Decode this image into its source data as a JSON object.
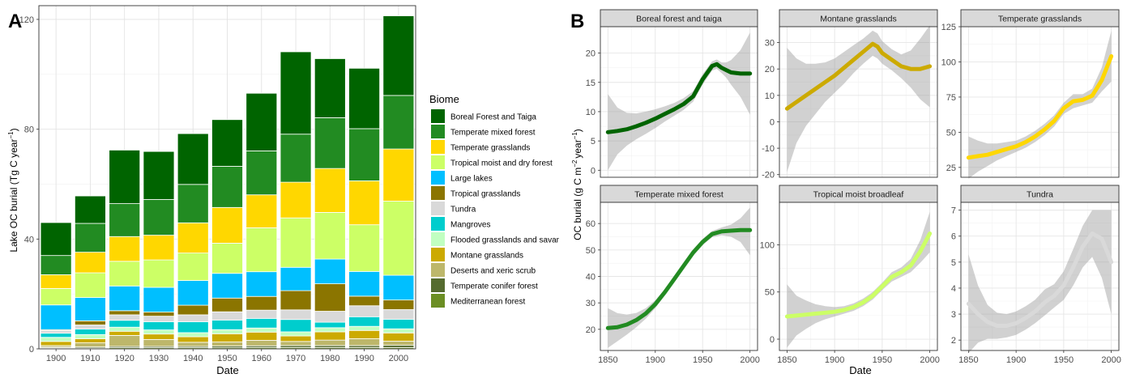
{
  "panelA": {
    "letter": "A",
    "chart_data": {
      "type": "bar",
      "stacked": true,
      "xlabel": "Date",
      "ylabel_main": "Lake OC burial (Tg C year",
      "ylabel_sup": "−1",
      "ylabel_end": ")",
      "ylim": [
        0,
        125
      ],
      "yticks": [
        0,
        40,
        80,
        120
      ],
      "categories": [
        "1900",
        "1910",
        "1920",
        "1930",
        "1940",
        "1950",
        "1960",
        "1970",
        "1980",
        "1990",
        "2000"
      ],
      "legend_title": "Biome",
      "grid": true,
      "series": [
        {
          "name": "Mediterranean forest",
          "color": "#6b8e23",
          "values": [
            0.3,
            0.3,
            0.4,
            0.4,
            0.4,
            0.4,
            0.5,
            0.5,
            0.5,
            0.5,
            0.5
          ]
        },
        {
          "name": "Temperate conifer forest",
          "color": "#556b2f",
          "values": [
            0.3,
            0.4,
            0.5,
            0.5,
            0.5,
            0.6,
            0.6,
            0.7,
            0.7,
            0.7,
            0.8
          ]
        },
        {
          "name": "Deserts and xeric scrub",
          "color": "#bdb76b",
          "values": [
            0.6,
            1.5,
            4.0,
            2.5,
            1.5,
            1.5,
            2.0,
            1.5,
            2.0,
            2.5,
            1.5
          ]
        },
        {
          "name": "Montane grasslands",
          "color": "#ccaa00",
          "values": [
            1.5,
            1.5,
            1.5,
            2.0,
            2.0,
            3.0,
            3.0,
            2.0,
            3.0,
            3.0,
            3.0
          ]
        },
        {
          "name": "Flooded grasslands and savanna",
          "color": "#c1ffc1",
          "values": [
            1.5,
            1.5,
            1.5,
            1.5,
            1.5,
            1.5,
            1.5,
            1.5,
            1.5,
            1.5,
            1.5
          ]
        },
        {
          "name": "Mangroves",
          "color": "#00cdcd",
          "values": [
            1.5,
            2.0,
            2.5,
            3.0,
            4.0,
            3.5,
            3.5,
            4.5,
            2.0,
            3.5,
            3.5
          ]
        },
        {
          "name": "Tundra",
          "color": "#d9d9d9",
          "values": [
            1.0,
            1.5,
            2.0,
            2.0,
            2.5,
            3.0,
            3.0,
            3.5,
            4.0,
            4.0,
            3.5
          ]
        },
        {
          "name": "Tropical grasslands",
          "color": "#8b7500",
          "values": [
            0.3,
            1.5,
            1.5,
            1.5,
            3.5,
            5.0,
            5.0,
            7.0,
            10.0,
            3.5,
            3.5
          ]
        },
        {
          "name": "Large lakes",
          "color": "#00bfff",
          "values": [
            9.0,
            8.5,
            9.0,
            9.0,
            9.0,
            9.0,
            9.0,
            8.5,
            9.0,
            9.0,
            9.0
          ]
        },
        {
          "name": "Tropical moist and dry forest",
          "color": "#ccff66",
          "values": [
            6.0,
            9.0,
            9.0,
            10.0,
            10.0,
            11.0,
            16.0,
            18.0,
            17.0,
            17.0,
            27.0
          ]
        },
        {
          "name": "Temperate grasslands",
          "color": "#ffd700",
          "values": [
            5.0,
            7.5,
            9.0,
            9.0,
            11.0,
            13.0,
            12.0,
            13.0,
            16.0,
            16.0,
            19.0
          ]
        },
        {
          "name": "Temperate mixed forest",
          "color": "#228b22",
          "values": [
            7.0,
            10.5,
            12.0,
            13.0,
            14.0,
            15.0,
            16.0,
            17.5,
            18.5,
            19.0,
            19.5
          ]
        },
        {
          "name": "Boreal Forest and Taiga",
          "color": "#006400",
          "values": [
            12.0,
            10.0,
            19.5,
            17.5,
            18.5,
            17.0,
            21.0,
            30.0,
            21.5,
            22.0,
            29.0
          ]
        }
      ],
      "legend_order": [
        "Boreal Forest and Taiga",
        "Temperate mixed forest",
        "Temperate grasslands",
        "Tropical moist and dry forest",
        "Large lakes",
        "Tropical grasslands",
        "Tundra",
        "Mangroves",
        "Flooded grasslands and savanna",
        "Montane grasslands",
        "Deserts and xeric scrub",
        "Temperate conifer forest",
        "Mediterranean forest"
      ]
    }
  },
  "panelB": {
    "letter": "B",
    "xlabel": "Date",
    "ylabel_main": "OC burial (g C m",
    "ylabel_sup1": "−2",
    "ylabel_mid": "year",
    "ylabel_sup2": "−1",
    "ylabel_end": ")",
    "xticks": [
      1850,
      1900,
      1950,
      2000
    ],
    "xlim": [
      1842,
      2008
    ],
    "chart_data": [
      {
        "type": "line",
        "title": "Boreal forest and taiga",
        "color": "#006400",
        "ylim": [
          -1.2,
          24.5
        ],
        "yticks": [
          0,
          5,
          10,
          15,
          20
        ],
        "x": [
          1850,
          1860,
          1870,
          1880,
          1890,
          1900,
          1910,
          1920,
          1930,
          1940,
          1950,
          1960,
          1965,
          1970,
          1975,
          1980,
          1990,
          2000
        ],
        "y": [
          6.5,
          6.7,
          7.0,
          7.5,
          8.1,
          8.8,
          9.6,
          10.4,
          11.3,
          12.6,
          15.5,
          17.8,
          18.1,
          17.5,
          17.1,
          16.7,
          16.5,
          16.5
        ],
        "lo": [
          0.0,
          2.7,
          4.2,
          5.3,
          6.2,
          7.2,
          8.3,
          9.3,
          10.3,
          11.7,
          14.6,
          17.0,
          17.3,
          16.6,
          15.8,
          14.6,
          12.5,
          9.5
        ],
        "hi": [
          13.0,
          10.7,
          9.8,
          9.7,
          10.0,
          10.4,
          10.9,
          11.5,
          12.3,
          13.5,
          16.4,
          18.6,
          18.9,
          18.4,
          18.4,
          18.8,
          20.5,
          23.5
        ]
      },
      {
        "type": "line",
        "title": "Montane grasslands",
        "color": "#ccaa00",
        "ylim": [
          -21,
          36
        ],
        "yticks": [
          -20,
          -10,
          0,
          10,
          20,
          30
        ],
        "x": [
          1850,
          1860,
          1870,
          1880,
          1890,
          1900,
          1910,
          1920,
          1930,
          1940,
          1945,
          1950,
          1960,
          1970,
          1980,
          1990,
          2000
        ],
        "y": [
          5.0,
          7.5,
          10.0,
          12.5,
          15.0,
          17.5,
          20.5,
          23.5,
          26.5,
          29.5,
          28.5,
          26.0,
          23.5,
          21.0,
          20.0,
          20.0,
          21.0
        ],
        "lo": [
          -19.0,
          -8.0,
          -1.5,
          3.0,
          7.5,
          11.0,
          14.5,
          18.5,
          22.0,
          25.0,
          24.0,
          22.0,
          19.5,
          16.5,
          13.0,
          8.5,
          5.5
        ],
        "hi": [
          28.0,
          24.0,
          22.0,
          22.0,
          22.5,
          24.0,
          26.5,
          29.0,
          31.5,
          34.5,
          33.5,
          30.5,
          27.5,
          25.5,
          27.0,
          31.5,
          36.5
        ]
      },
      {
        "type": "line",
        "title": "Temperate grasslands",
        "color": "#ffd700",
        "ylim": [
          18,
          125
        ],
        "yticks": [
          25,
          50,
          75,
          100,
          125
        ],
        "x": [
          1850,
          1860,
          1870,
          1880,
          1890,
          1900,
          1910,
          1920,
          1930,
          1940,
          1950,
          1960,
          1970,
          1980,
          1990,
          2000
        ],
        "y": [
          32,
          33,
          34,
          36,
          38,
          40,
          43,
          47,
          52,
          58,
          67,
          72,
          73,
          76,
          87,
          104
        ],
        "lo": [
          17,
          22,
          26,
          30,
          33,
          36,
          39,
          43,
          48,
          54,
          63,
          67,
          69,
          71,
          79,
          86
        ],
        "hi": [
          47,
          44,
          42,
          42,
          43,
          44,
          47,
          51,
          56,
          62,
          71,
          77,
          77,
          81,
          96,
          122
        ]
      },
      {
        "type": "line",
        "title": "Temperate mixed forest",
        "color": "#228b22",
        "ylim": [
          12,
          68
        ],
        "yticks": [
          20,
          30,
          40,
          50,
          60
        ],
        "x": [
          1850,
          1860,
          1870,
          1880,
          1890,
          1900,
          1910,
          1920,
          1930,
          1940,
          1950,
          1960,
          1970,
          1980,
          1990,
          2000
        ],
        "y": [
          20.5,
          20.8,
          21.8,
          23.5,
          26.0,
          29.5,
          34.0,
          39.0,
          44.0,
          49.0,
          53.0,
          56.0,
          57.0,
          57.3,
          57.5,
          57.5
        ],
        "lo": [
          13.0,
          15.5,
          18.0,
          20.8,
          24.0,
          28.0,
          32.8,
          37.8,
          42.8,
          47.8,
          51.8,
          54.8,
          55.5,
          55.0,
          53.0,
          48.0
        ],
        "hi": [
          28.0,
          26.1,
          25.6,
          26.2,
          28.0,
          31.0,
          35.2,
          40.2,
          45.2,
          50.2,
          54.2,
          57.2,
          58.5,
          59.6,
          62.0,
          66.0
        ]
      },
      {
        "type": "line",
        "title": "Tropical moist broadleaf",
        "color": "#ccff66",
        "ylim": [
          -12,
          145
        ],
        "yticks": [
          0,
          50,
          100
        ],
        "x": [
          1850,
          1860,
          1870,
          1880,
          1890,
          1900,
          1910,
          1920,
          1930,
          1940,
          1950,
          1960,
          1970,
          1980,
          1990,
          2000
        ],
        "y": [
          24,
          25,
          26,
          27,
          28,
          29,
          31,
          34,
          39,
          46,
          56,
          66,
          71,
          78,
          93,
          112
        ],
        "lo": [
          -9,
          4,
          11,
          17,
          21,
          24,
          27,
          30,
          35,
          42,
          52,
          61,
          66,
          71,
          81,
          92
        ],
        "hi": [
          58,
          46,
          41,
          37,
          35,
          34,
          35,
          38,
          43,
          50,
          60,
          71,
          76,
          85,
          105,
          135
        ]
      },
      {
        "type": "line",
        "title": "Tundra",
        "color": "#d9d9d9",
        "ylim": [
          1.6,
          7.3
        ],
        "yticks": [
          2,
          3,
          4,
          5,
          6,
          7
        ],
        "x": [
          1850,
          1860,
          1870,
          1880,
          1890,
          1900,
          1910,
          1920,
          1930,
          1940,
          1950,
          1960,
          1970,
          1980,
          1990,
          2000
        ],
        "y": [
          3.4,
          3.0,
          2.7,
          2.55,
          2.55,
          2.65,
          2.85,
          3.1,
          3.45,
          3.7,
          4.1,
          4.8,
          5.6,
          6.1,
          5.9,
          5.0
        ],
        "lo": [
          1.5,
          1.9,
          2.05,
          2.05,
          2.1,
          2.2,
          2.4,
          2.65,
          2.95,
          3.25,
          3.55,
          4.1,
          4.8,
          5.2,
          4.4,
          3.0
        ],
        "hi": [
          5.3,
          4.1,
          3.35,
          3.05,
          3.0,
          3.1,
          3.3,
          3.55,
          3.95,
          4.15,
          4.65,
          5.5,
          6.4,
          7.0,
          7.0,
          7.0
        ]
      }
    ]
  }
}
